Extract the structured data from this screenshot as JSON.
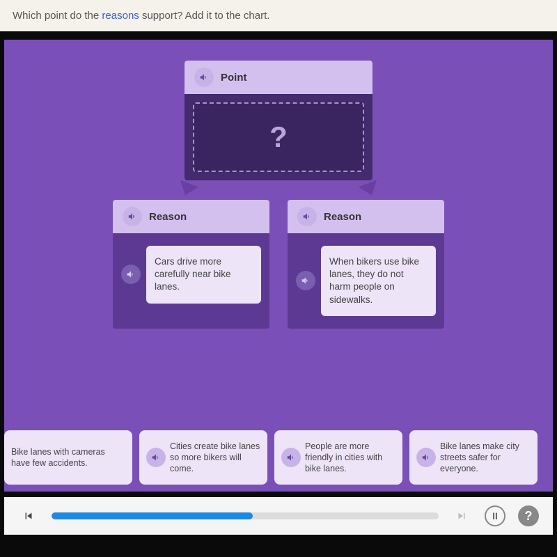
{
  "question": {
    "pre": "Which point do the ",
    "keyword": "reasons",
    "post": " support? Add it to the chart."
  },
  "chart": {
    "point_label": "Point",
    "placeholder": "?",
    "reason_label": "Reason",
    "reasons": [
      {
        "text": "Cars drive more carefully near bike lanes."
      },
      {
        "text": "When bikers use bike lanes, they do not harm people on sidewalks."
      }
    ]
  },
  "options": [
    {
      "text": "Bike lanes with cameras have few accidents."
    },
    {
      "text": "Cities create bike lanes so more bikers will come."
    },
    {
      "text": "People are more friendly in cities with bike lanes."
    },
    {
      "text": "Bike lanes make city streets safer for everyone."
    }
  ],
  "player": {
    "progress_pct": 52,
    "pause_glyph": "II",
    "help_glyph": "?"
  },
  "colors": {
    "stage_bg": "#7a4fb8",
    "header_bg": "#d4c0ef",
    "card_bg": "#ede4f7",
    "point_bg": "#432b6e",
    "reason_bg": "#5c3a94",
    "progress": "#1e88e5",
    "question_bg": "#f5f2ec",
    "keyword": "#3b5bdb"
  }
}
